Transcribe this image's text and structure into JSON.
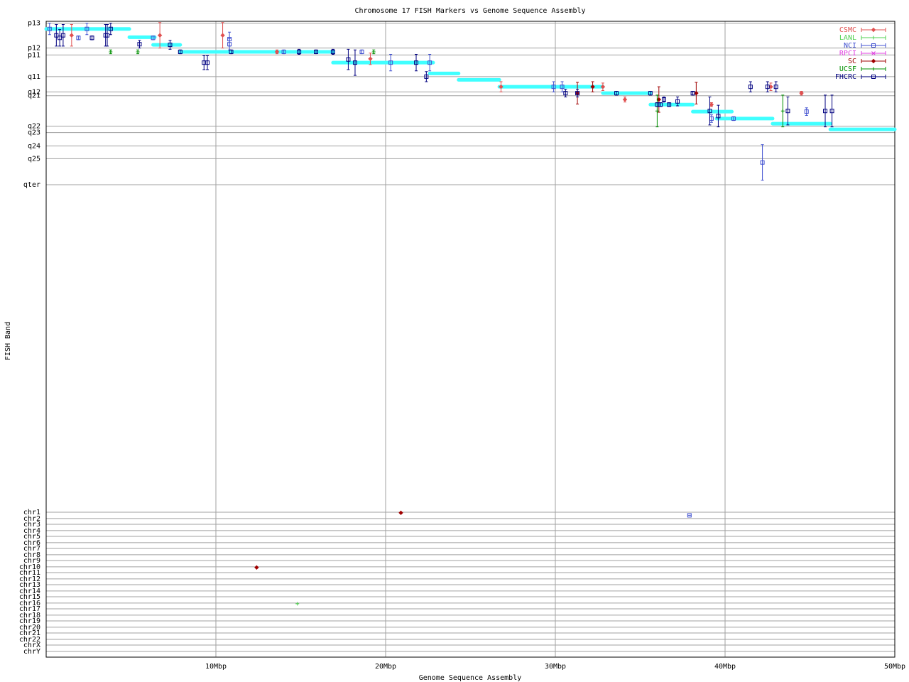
{
  "chart_data": {
    "type": "scatter",
    "title": "Chromosome 17 FISH Markers vs Genome Sequence Assembly",
    "x_label": "Genome Sequence Assembly",
    "y_label": "FISH Band",
    "xlim": [
      0,
      50
    ],
    "xticks": [
      {
        "value": 10,
        "label": "10Mbp"
      },
      {
        "value": 20,
        "label": "20Mbp"
      },
      {
        "value": 30,
        "label": "30Mbp"
      },
      {
        "value": 40,
        "label": "40Mbp"
      },
      {
        "value": 50,
        "label": "50Mbp"
      }
    ],
    "ylim": [
      0,
      100
    ],
    "y_reversed": true,
    "yticks": [
      {
        "value": 0.3,
        "label": "p13"
      },
      {
        "value": 4.2,
        "label": "p12"
      },
      {
        "value": 5.3,
        "label": "p11"
      },
      {
        "value": 8.7,
        "label": "q11"
      },
      {
        "value": 11.1,
        "label": "q12"
      },
      {
        "value": 11.7,
        "label": "q21"
      },
      {
        "value": 16.5,
        "label": "q22"
      },
      {
        "value": 17.5,
        "label": "q23"
      },
      {
        "value": 19.6,
        "label": "q24"
      },
      {
        "value": 21.6,
        "label": "q25"
      },
      {
        "value": 25.7,
        "label": "qter"
      },
      {
        "value": 77.2,
        "label": "chr1"
      },
      {
        "value": 78.2,
        "label": "chr2"
      },
      {
        "value": 79.1,
        "label": "chr3"
      },
      {
        "value": 80.1,
        "label": "chr4"
      },
      {
        "value": 81.0,
        "label": "chr5"
      },
      {
        "value": 82.0,
        "label": "chr6"
      },
      {
        "value": 82.9,
        "label": "chr7"
      },
      {
        "value": 83.9,
        "label": "chr8"
      },
      {
        "value": 84.8,
        "label": "chr9"
      },
      {
        "value": 85.8,
        "label": "chr10"
      },
      {
        "value": 86.7,
        "label": "chr11"
      },
      {
        "value": 87.7,
        "label": "chr12"
      },
      {
        "value": 88.6,
        "label": "chr13"
      },
      {
        "value": 89.6,
        "label": "chr14"
      },
      {
        "value": 90.5,
        "label": "chr15"
      },
      {
        "value": 91.5,
        "label": "chr16"
      },
      {
        "value": 92.4,
        "label": "chr17"
      },
      {
        "value": 93.4,
        "label": "chr18"
      },
      {
        "value": 94.3,
        "label": "chr19"
      },
      {
        "value": 95.3,
        "label": "chr20"
      },
      {
        "value": 96.2,
        "label": "chr21"
      },
      {
        "value": 97.2,
        "label": "chr22"
      },
      {
        "value": 98.1,
        "label": "chrX"
      },
      {
        "value": 99.1,
        "label": "chrY"
      }
    ],
    "grid": true,
    "legend": "top-right",
    "segments": {
      "color": "#40ffff",
      "x0": [
        0,
        4.9,
        6.3,
        7.9,
        16.9,
        22.6,
        24.3,
        26.7,
        32.8,
        35.6,
        38.1,
        39.5,
        42.8,
        46.2
      ],
      "x1": [
        4.9,
        6.4,
        7.9,
        16.9,
        22.8,
        24.3,
        26.7,
        32.8,
        35.6,
        38.1,
        40.4,
        42.8,
        46.2,
        50
      ],
      "y": [
        1.2,
        2.5,
        3.7,
        4.8,
        6.5,
        8.2,
        9.2,
        10.3,
        11.3,
        13.1,
        14.2,
        15.3,
        16.1,
        17.0
      ]
    },
    "series": [
      {
        "name": "CSMC",
        "color": "#e05050",
        "marker": "diamond",
        "x": [
          1.5,
          6.7,
          10.4,
          13.6,
          19.1,
          26.8,
          32.8,
          34.1,
          39.2,
          42.7,
          44.5
        ],
        "values": [
          2.2,
          2.2,
          2.2,
          4.8,
          5.9,
          10.3,
          10.3,
          12.3,
          13.1,
          10.3,
          11.3
        ],
        "errors": [
          1.7,
          2.0,
          2.0,
          0.3,
          0.9,
          0.8,
          0.6,
          0.4,
          0.3,
          0.6,
          0.3
        ]
      },
      {
        "name": "LANL",
        "color": "#50d050",
        "marker": "plus",
        "x": [
          14.8
        ],
        "values": [
          91.6
        ],
        "errors": [
          0
        ]
      },
      {
        "name": "NCI",
        "color": "#4050d0",
        "marker": "square",
        "x": [
          0.2,
          1.9,
          2.4,
          6.3,
          10.8,
          10.8,
          14.0,
          18.6,
          20.3,
          22.6,
          29.9,
          30.4,
          39.2,
          40.5,
          42.2,
          44.8,
          37.9
        ],
        "values": [
          1.2,
          2.6,
          1.2,
          2.6,
          2.8,
          3.6,
          4.8,
          4.8,
          6.5,
          6.5,
          10.3,
          10.3,
          15.3,
          15.3,
          22.2,
          14.2,
          77.7
        ],
        "errors": [
          0.9,
          0.3,
          0.9,
          0.3,
          1.1,
          0.9,
          0.3,
          0.3,
          1.3,
          1.3,
          0.8,
          0.8,
          0.6,
          0.3,
          2.8,
          0.6,
          0
        ]
      },
      {
        "name": "RPCI",
        "color": "#e040e0",
        "marker": "cross",
        "x": [],
        "values": [],
        "errors": []
      },
      {
        "name": "SC",
        "color": "#a00000",
        "marker": "diamond",
        "x": [
          20.9,
          12.4,
          32.2,
          31.3,
          36.1,
          38.3
        ],
        "values": [
          77.3,
          85.9,
          10.3,
          11.3,
          12.3,
          11.3
        ],
        "errors": [
          0,
          0,
          0.8,
          1.7,
          2.0,
          1.7
        ]
      },
      {
        "name": "UCSF",
        "color": "#009000",
        "marker": "plus",
        "x": [
          3.8,
          5.4,
          19.3,
          36.0,
          43.4
        ],
        "values": [
          4.8,
          4.8,
          4.8,
          14.1,
          14.1
        ],
        "errors": [
          0.3,
          0.3,
          0.3,
          2.5,
          2.5
        ]
      },
      {
        "name": "FHCRC",
        "color": "#000080",
        "marker": "square",
        "x": [
          0.6,
          0.8,
          1.0,
          2.7,
          3.5,
          3.6,
          3.8,
          5.5,
          7.3,
          7.9,
          9.3,
          9.5,
          10.9,
          14.9,
          15.9,
          16.9,
          17.8,
          18.2,
          21.8,
          22.4,
          30.6,
          31.3,
          33.6,
          35.6,
          36.0,
          36.2,
          36.4,
          36.7,
          37.2,
          38.1,
          39.1,
          39.6,
          41.5,
          42.5,
          43.0,
          43.7,
          45.9,
          46.3
        ],
        "values": [
          2.2,
          2.6,
          2.2,
          2.6,
          2.2,
          2.2,
          1.2,
          3.6,
          3.7,
          4.8,
          6.5,
          6.5,
          4.8,
          4.8,
          4.8,
          4.8,
          6.0,
          6.5,
          6.5,
          8.7,
          11.3,
          11.3,
          11.3,
          11.3,
          13.1,
          13.1,
          12.3,
          13.1,
          12.6,
          11.3,
          14.1,
          14.9,
          10.3,
          10.3,
          10.3,
          14.1,
          14.1,
          14.1
        ],
        "errors": [
          1.7,
          1.3,
          1.7,
          0.3,
          1.7,
          1.7,
          0.9,
          0.6,
          0.7,
          0.3,
          1.1,
          1.1,
          0.3,
          0.4,
          0.3,
          0.4,
          1.6,
          2.0,
          1.3,
          0.8,
          0.6,
          0.6,
          0.3,
          0.3,
          0.3,
          0.3,
          0.4,
          0.3,
          0.7,
          0.3,
          2.2,
          1.7,
          0.8,
          0.8,
          0.8,
          2.2,
          2.5,
          2.5
        ]
      }
    ]
  }
}
